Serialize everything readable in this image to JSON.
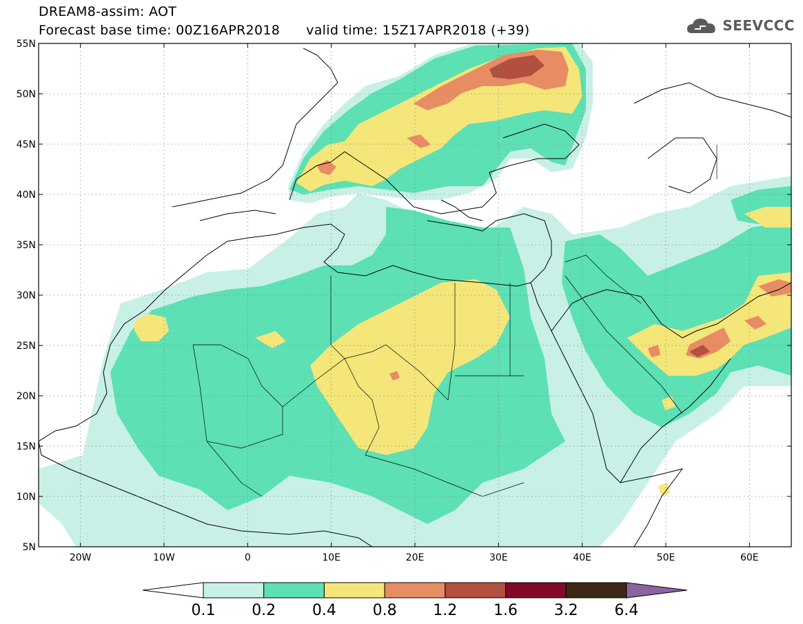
{
  "header": {
    "title_line1": "DREAM8-assim: AOT",
    "base_time_label": "Forecast base time: 00Z16APR2018",
    "valid_time_label": "valid time: 15Z17APR2018 (+39)"
  },
  "logo": {
    "text": "SEEVCCC",
    "icon": "cloud-icon"
  },
  "map": {
    "lon_range": [
      -25,
      65
    ],
    "lat_range": [
      5,
      55
    ],
    "lat_ticks": [
      {
        "value": 55,
        "label": "55N"
      },
      {
        "value": 50,
        "label": "50N"
      },
      {
        "value": 45,
        "label": "45N"
      },
      {
        "value": 40,
        "label": "40N"
      },
      {
        "value": 35,
        "label": "35N"
      },
      {
        "value": 30,
        "label": "30N"
      },
      {
        "value": 25,
        "label": "25N"
      },
      {
        "value": 20,
        "label": "20N"
      },
      {
        "value": 15,
        "label": "15N"
      },
      {
        "value": 10,
        "label": "10N"
      },
      {
        "value": 5,
        "label": "5N"
      }
    ],
    "lon_ticks": [
      {
        "value": -20,
        "label": "20W"
      },
      {
        "value": -10,
        "label": "10W"
      },
      {
        "value": 0,
        "label": "0"
      },
      {
        "value": 10,
        "label": "10E"
      },
      {
        "value": 20,
        "label": "20E"
      },
      {
        "value": 30,
        "label": "30E"
      },
      {
        "value": 40,
        "label": "40E"
      },
      {
        "value": 50,
        "label": "50E"
      },
      {
        "value": 60,
        "label": "60E"
      }
    ],
    "grid": true
  },
  "colorbar": {
    "levels": [
      "0.1",
      "0.2",
      "0.4",
      "0.8",
      "1.2",
      "1.6",
      "3.2",
      "6.4"
    ],
    "colors": [
      "#ffffff",
      "#c8f0e6",
      "#5ce0b4",
      "#f5e67a",
      "#e88c64",
      "#b25040",
      "#820a28",
      "#3c2814",
      "#8c64a0"
    ]
  },
  "colors": {
    "land": "#ffffff",
    "level1": "#c8f0e6",
    "level2": "#5ce0b4",
    "level3": "#f5e67a",
    "level4": "#e88c64",
    "level5": "#b25040",
    "level6": "#820a28"
  }
}
